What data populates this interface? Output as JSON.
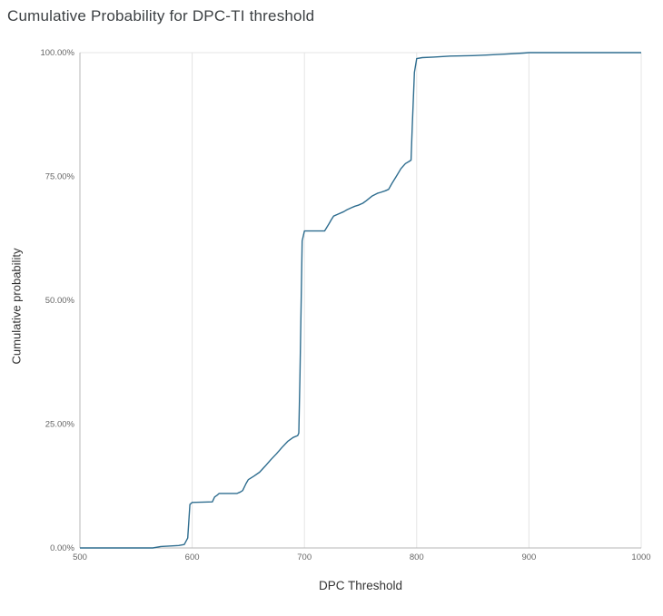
{
  "page": {
    "background": "#ffffff"
  },
  "style": {
    "grid_color": "#e4e4e4",
    "axis_color": "#b7b7b7",
    "tick_color": "#666666",
    "title_color": "#3c4043",
    "line_color": "#2e6d8f"
  },
  "chart_data": {
    "type": "line",
    "title": "Cumulative Probability for DPC-TI threshold",
    "xlabel": "DPC Threshold",
    "ylabel": "Cumulative probability",
    "xlim": [
      500,
      1000
    ],
    "ylim": [
      0,
      100
    ],
    "grid": {
      "vertical": true,
      "horizontal": false,
      "top_border": true
    },
    "legend": "none",
    "x_ticks": [
      {
        "value": 500,
        "label": "500"
      },
      {
        "value": 600,
        "label": "600"
      },
      {
        "value": 700,
        "label": "700"
      },
      {
        "value": 800,
        "label": "800"
      },
      {
        "value": 900,
        "label": "900"
      },
      {
        "value": 1000,
        "label": "1000"
      }
    ],
    "y_ticks": [
      {
        "value": 0,
        "label": "0.00%"
      },
      {
        "value": 25,
        "label": "25.00%"
      },
      {
        "value": 50,
        "label": "50.00%"
      },
      {
        "value": 75,
        "label": "75.00%"
      },
      {
        "value": 100,
        "label": "100.00%"
      }
    ],
    "series": [
      {
        "name": "Cumulative probability",
        "color": "#2e6d8f",
        "points": [
          [
            500,
            0
          ],
          [
            565,
            0
          ],
          [
            572,
            0.3
          ],
          [
            588,
            0.5
          ],
          [
            593,
            0.7
          ],
          [
            596,
            2
          ],
          [
            598,
            8.8
          ],
          [
            600,
            9.2
          ],
          [
            618,
            9.3
          ],
          [
            620,
            10.3
          ],
          [
            622,
            10.6
          ],
          [
            624,
            11
          ],
          [
            640,
            11
          ],
          [
            643,
            11.3
          ],
          [
            645,
            11.6
          ],
          [
            648,
            13
          ],
          [
            650,
            13.8
          ],
          [
            655,
            14.5
          ],
          [
            660,
            15.3
          ],
          [
            665,
            16.5
          ],
          [
            670,
            17.8
          ],
          [
            675,
            19
          ],
          [
            680,
            20.3
          ],
          [
            685,
            21.5
          ],
          [
            690,
            22.3
          ],
          [
            694,
            22.7
          ],
          [
            695,
            23.2
          ],
          [
            696,
            35
          ],
          [
            698,
            62
          ],
          [
            700,
            64
          ],
          [
            718,
            64
          ],
          [
            722,
            65.5
          ],
          [
            724,
            66.3
          ],
          [
            726,
            67
          ],
          [
            730,
            67.4
          ],
          [
            735,
            67.9
          ],
          [
            738,
            68.3
          ],
          [
            742,
            68.7
          ],
          [
            745,
            69
          ],
          [
            748,
            69.2
          ],
          [
            752,
            69.6
          ],
          [
            755,
            70.1
          ],
          [
            760,
            71
          ],
          [
            765,
            71.6
          ],
          [
            768,
            71.8
          ],
          [
            772,
            72.1
          ],
          [
            775,
            72.4
          ],
          [
            778,
            73.6
          ],
          [
            782,
            75.1
          ],
          [
            786,
            76.6
          ],
          [
            790,
            77.6
          ],
          [
            793,
            78
          ],
          [
            795,
            78.3
          ],
          [
            796,
            85
          ],
          [
            798,
            96
          ],
          [
            800,
            98.8
          ],
          [
            805,
            99
          ],
          [
            815,
            99.1
          ],
          [
            830,
            99.3
          ],
          [
            850,
            99.4
          ],
          [
            862,
            99.5
          ],
          [
            880,
            99.7
          ],
          [
            895,
            99.9
          ],
          [
            900,
            100
          ],
          [
            1000,
            100
          ]
        ]
      }
    ]
  }
}
